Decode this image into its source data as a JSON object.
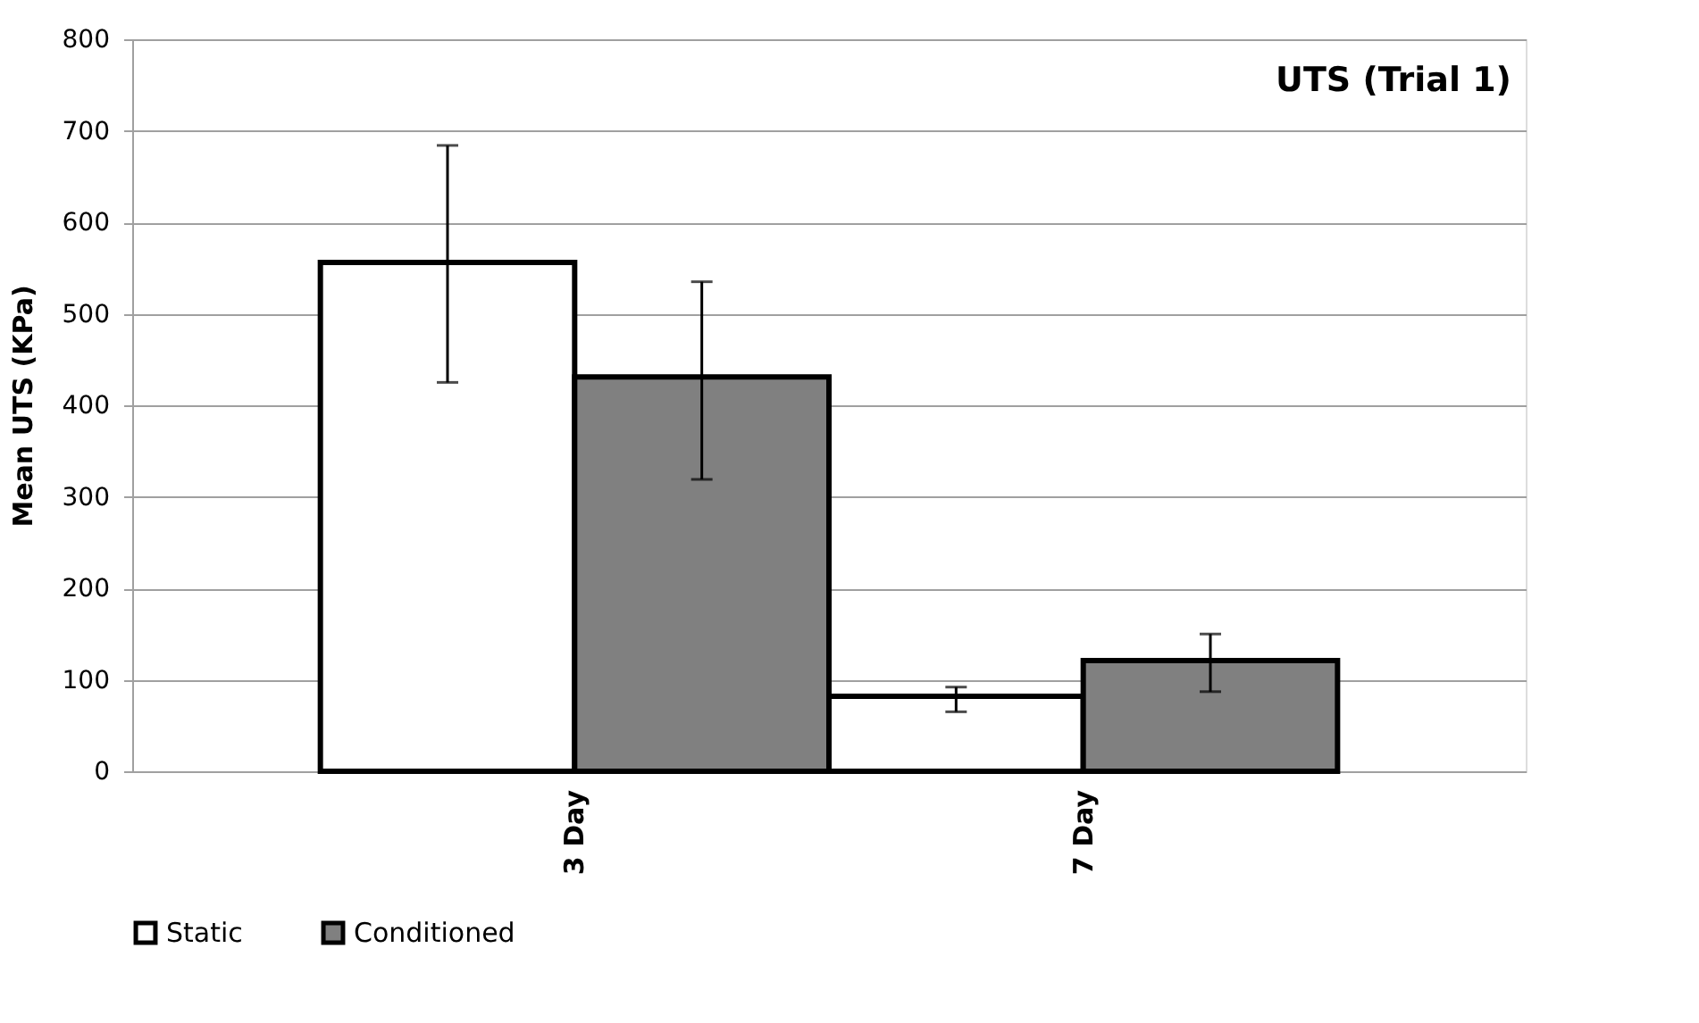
{
  "chart_data": {
    "type": "bar",
    "title": "UTS (Trial 1)",
    "ylabel": "Mean UTS (KPa)",
    "categories": [
      "3 Day",
      "7 Day"
    ],
    "series": [
      {
        "name": "Static",
        "color": "#ffffff",
        "values": [
          556,
          82
        ],
        "errors": [
          [
            425,
            684
          ],
          [
            65,
            92
          ]
        ]
      },
      {
        "name": "Conditioned",
        "color": "#808080",
        "values": [
          431,
          121
        ],
        "errors": [
          [
            319,
            535
          ],
          [
            87,
            150
          ]
        ]
      }
    ],
    "ylim": [
      0,
      800
    ],
    "yticks": [
      0,
      100,
      200,
      300,
      400,
      500,
      600,
      700,
      800
    ],
    "grid": "y",
    "legend": "bottom"
  }
}
